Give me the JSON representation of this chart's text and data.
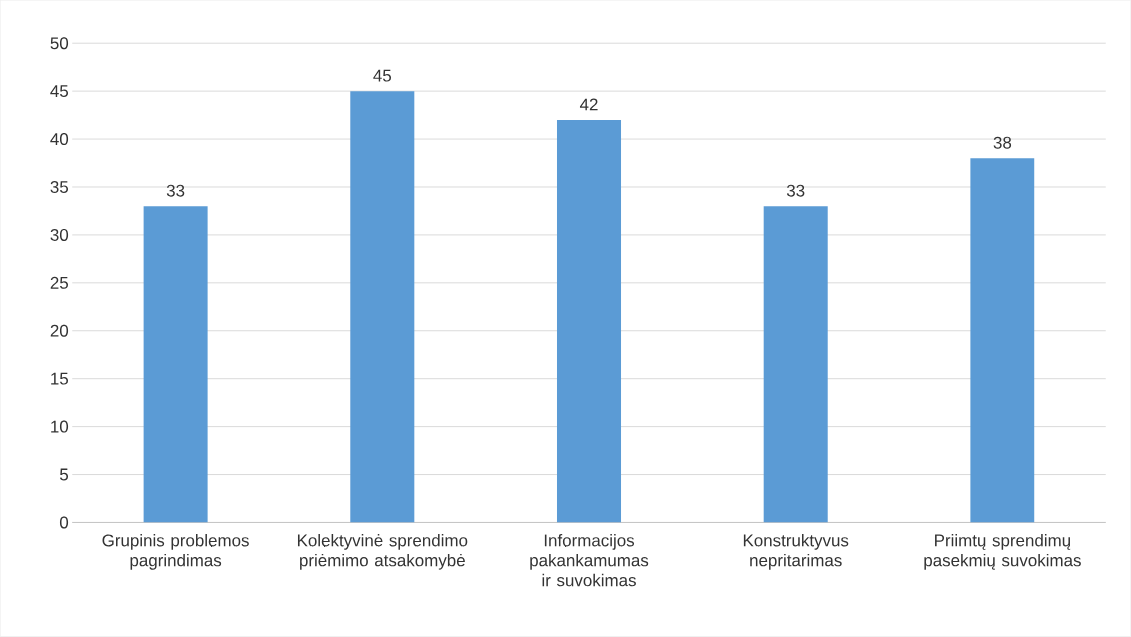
{
  "chart_data": {
    "type": "bar",
    "categories": [
      "Grupinis problemos pagrindimas",
      "Kolektyvinė sprendimo priėmimo atsakomybė",
      "Informacijos pakankamumas ir suvokimas",
      "Konstruktyvus nepritarimas",
      "Priimtų sprendimų pasekmių suvokimas"
    ],
    "values": [
      33,
      45,
      42,
      33,
      38
    ],
    "color": "#5b9bd5",
    "data_labels": true,
    "grid": "y",
    "ylim": [
      0,
      50
    ],
    "yticks": [
      0,
      5,
      10,
      15,
      20,
      25,
      30,
      35,
      40,
      45,
      50
    ]
  }
}
